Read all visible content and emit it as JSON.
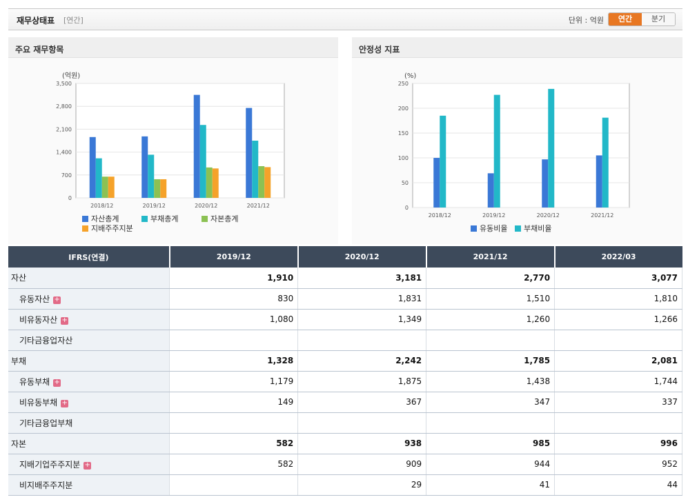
{
  "header": {
    "title": "재무상태표",
    "subtitle": "[연간]",
    "unit_label": "단위 : 억원",
    "toggle_annual": "연간",
    "toggle_quarter": "분기"
  },
  "left_panel": {
    "title": "주요 재무항목",
    "unit": "(억원)"
  },
  "right_panel": {
    "title": "안정성 지표",
    "unit": "(%)"
  },
  "chart_data": [
    {
      "type": "bar",
      "title": "주요 재무항목",
      "ylabel": "(억원)",
      "categories": [
        "2018/12",
        "2019/12",
        "2020/12",
        "2021/12"
      ],
      "ylim": [
        0,
        3500
      ],
      "yticks": [
        "3,500",
        "2,800",
        "2,100",
        "1,400",
        "700",
        "0"
      ],
      "ytick_values": [
        3500,
        2800,
        2100,
        1400,
        700,
        0
      ],
      "series": [
        {
          "name": "자산총계",
          "color": "#3a78d6",
          "values": [
            1860,
            1880,
            3150,
            2750
          ]
        },
        {
          "name": "부채총계",
          "color": "#22b8c8",
          "values": [
            1210,
            1320,
            2230,
            1750
          ]
        },
        {
          "name": "자본총계",
          "color": "#8cc153",
          "values": [
            650,
            570,
            930,
            970
          ]
        },
        {
          "name": "지배주주지분",
          "color": "#f5a22a",
          "values": [
            650,
            570,
            900,
            940
          ]
        }
      ]
    },
    {
      "type": "bar",
      "title": "안정성 지표",
      "ylabel": "(%)",
      "categories": [
        "2018/12",
        "2019/12",
        "2020/12",
        "2021/12"
      ],
      "ylim": [
        0,
        250
      ],
      "yticks": [
        "250",
        "200",
        "150",
        "100",
        "50",
        "0"
      ],
      "ytick_values": [
        250,
        200,
        150,
        100,
        50,
        0
      ],
      "series": [
        {
          "name": "유동비율",
          "color": "#3a78d6",
          "values": [
            100,
            69,
            97,
            105
          ]
        },
        {
          "name": "부채비율",
          "color": "#22b8c8",
          "values": [
            185,
            227,
            239,
            181
          ]
        }
      ]
    }
  ],
  "table": {
    "corner": "IFRS(연결)",
    "columns": [
      "2019/12",
      "2020/12",
      "2021/12",
      "2022/03"
    ],
    "rows": [
      {
        "label": "자산",
        "level": 0,
        "bold": true,
        "plus": false,
        "values": [
          "1,910",
          "3,181",
          "2,770",
          "3,077"
        ]
      },
      {
        "label": "유동자산",
        "level": 1,
        "bold": false,
        "plus": true,
        "values": [
          "830",
          "1,831",
          "1,510",
          "1,810"
        ]
      },
      {
        "label": "비유동자산",
        "level": 1,
        "bold": false,
        "plus": true,
        "values": [
          "1,080",
          "1,349",
          "1,260",
          "1,266"
        ]
      },
      {
        "label": "기타금융업자산",
        "level": 1,
        "bold": false,
        "plus": false,
        "values": [
          "",
          "",
          "",
          ""
        ]
      },
      {
        "label": "부채",
        "level": 0,
        "bold": true,
        "plus": false,
        "values": [
          "1,328",
          "2,242",
          "1,785",
          "2,081"
        ]
      },
      {
        "label": "유동부채",
        "level": 1,
        "bold": false,
        "plus": true,
        "values": [
          "1,179",
          "1,875",
          "1,438",
          "1,744"
        ]
      },
      {
        "label": "비유동부채",
        "level": 1,
        "bold": false,
        "plus": true,
        "values": [
          "149",
          "367",
          "347",
          "337"
        ]
      },
      {
        "label": "기타금융업부채",
        "level": 1,
        "bold": false,
        "plus": false,
        "values": [
          "",
          "",
          "",
          ""
        ]
      },
      {
        "label": "자본",
        "level": 0,
        "bold": true,
        "plus": false,
        "values": [
          "582",
          "938",
          "985",
          "996"
        ]
      },
      {
        "label": "지배기업주주지분",
        "level": 1,
        "bold": false,
        "plus": true,
        "values": [
          "582",
          "909",
          "944",
          "952"
        ]
      },
      {
        "label": "비지배주주지분",
        "level": 1,
        "bold": false,
        "plus": false,
        "values": [
          "",
          "29",
          "41",
          "44"
        ]
      }
    ]
  },
  "plus_symbol": "+"
}
